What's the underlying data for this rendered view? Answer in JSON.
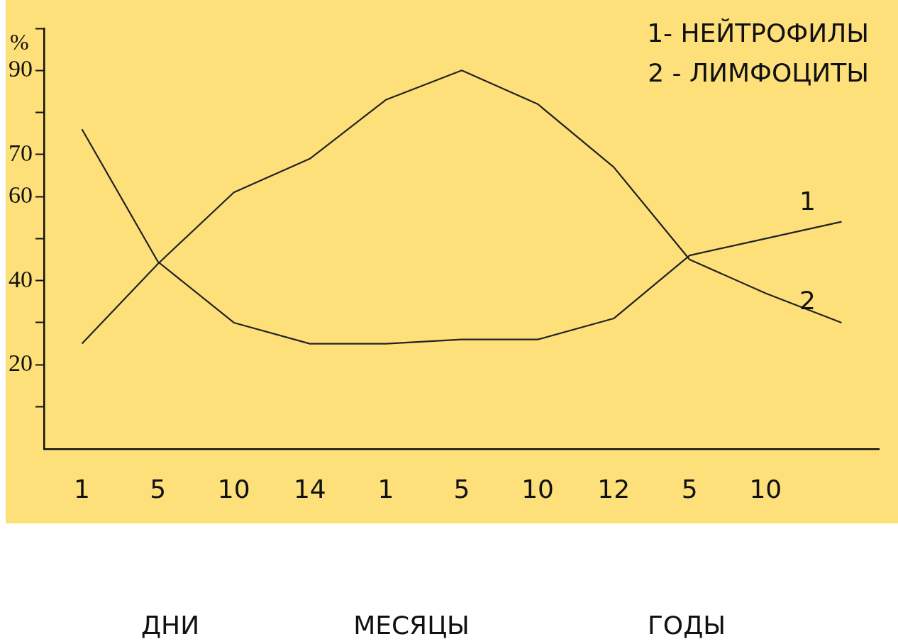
{
  "chart_data": {
    "type": "line",
    "ylabel": "%",
    "categories": [
      "1",
      "5",
      "10",
      "14",
      "1",
      "5",
      "10",
      "12",
      "5",
      "10",
      null
    ],
    "series": [
      {
        "name": "1",
        "color": "#222222",
        "values": [
          76,
          44.5,
          30,
          25,
          25,
          26,
          26,
          31,
          46,
          50,
          54
        ]
      },
      {
        "name": "2",
        "color": "#222222",
        "values": [
          25,
          44,
          61,
          69,
          83,
          90,
          82,
          67,
          45,
          37,
          30
        ]
      }
    ],
    "ylim": [
      0,
      100
    ],
    "yticks": [
      {
        "value": 10,
        "label": null
      },
      20,
      {
        "value": 30,
        "label": null
      },
      40,
      {
        "value": 50,
        "label": null
      },
      60,
      70,
      {
        "value": 80,
        "label": null
      },
      90,
      {
        "value": 100,
        "label": null
      }
    ],
    "annotations": [
      "1- НЕЙТРОФИЛЫ",
      "2 - ЛИМФОЦИТЫ",
      "ДНИ",
      "МЕСЯЦЫ",
      "ГОДЫ"
    ],
    "grid": false,
    "legend": false,
    "marker": "none",
    "line_style": "solid"
  }
}
